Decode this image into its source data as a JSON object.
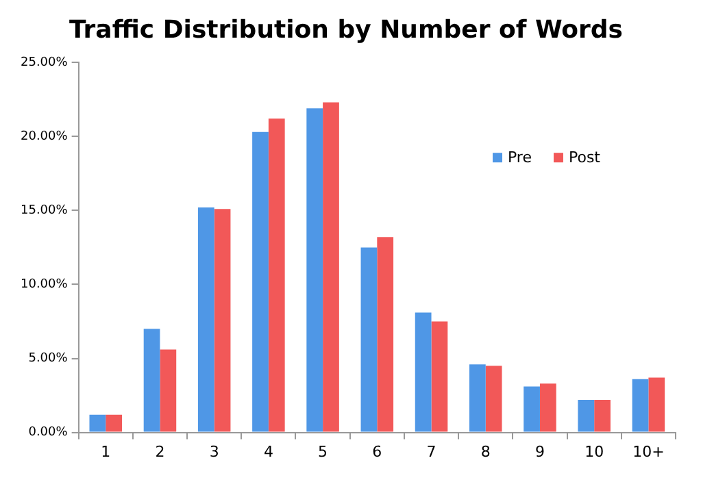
{
  "chart_data": {
    "type": "bar",
    "title": "Traffic Distribution by Number of Words",
    "categories": [
      "1",
      "2",
      "3",
      "4",
      "5",
      "6",
      "7",
      "8",
      "9",
      "10",
      "10+"
    ],
    "series": [
      {
        "name": "Pre",
        "color": "#4f97e6",
        "values": [
          1.2,
          7.0,
          15.2,
          20.3,
          21.9,
          12.5,
          8.1,
          4.6,
          3.1,
          2.2,
          3.6
        ]
      },
      {
        "name": "Post",
        "color": "#f25858",
        "values": [
          1.2,
          5.6,
          15.1,
          21.2,
          22.3,
          13.2,
          7.5,
          4.5,
          3.3,
          2.2,
          3.7
        ]
      }
    ],
    "ylim": [
      0,
      25
    ],
    "yticks": [
      {
        "value": 0,
        "label": "0.00%"
      },
      {
        "value": 5,
        "label": "5.00%"
      },
      {
        "value": 10,
        "label": "10.00%"
      },
      {
        "value": 15,
        "label": "15.00%"
      },
      {
        "value": 20,
        "label": "20.00%"
      },
      {
        "value": 25,
        "label": "25.00%"
      }
    ],
    "grid": false,
    "legend": "top right"
  }
}
